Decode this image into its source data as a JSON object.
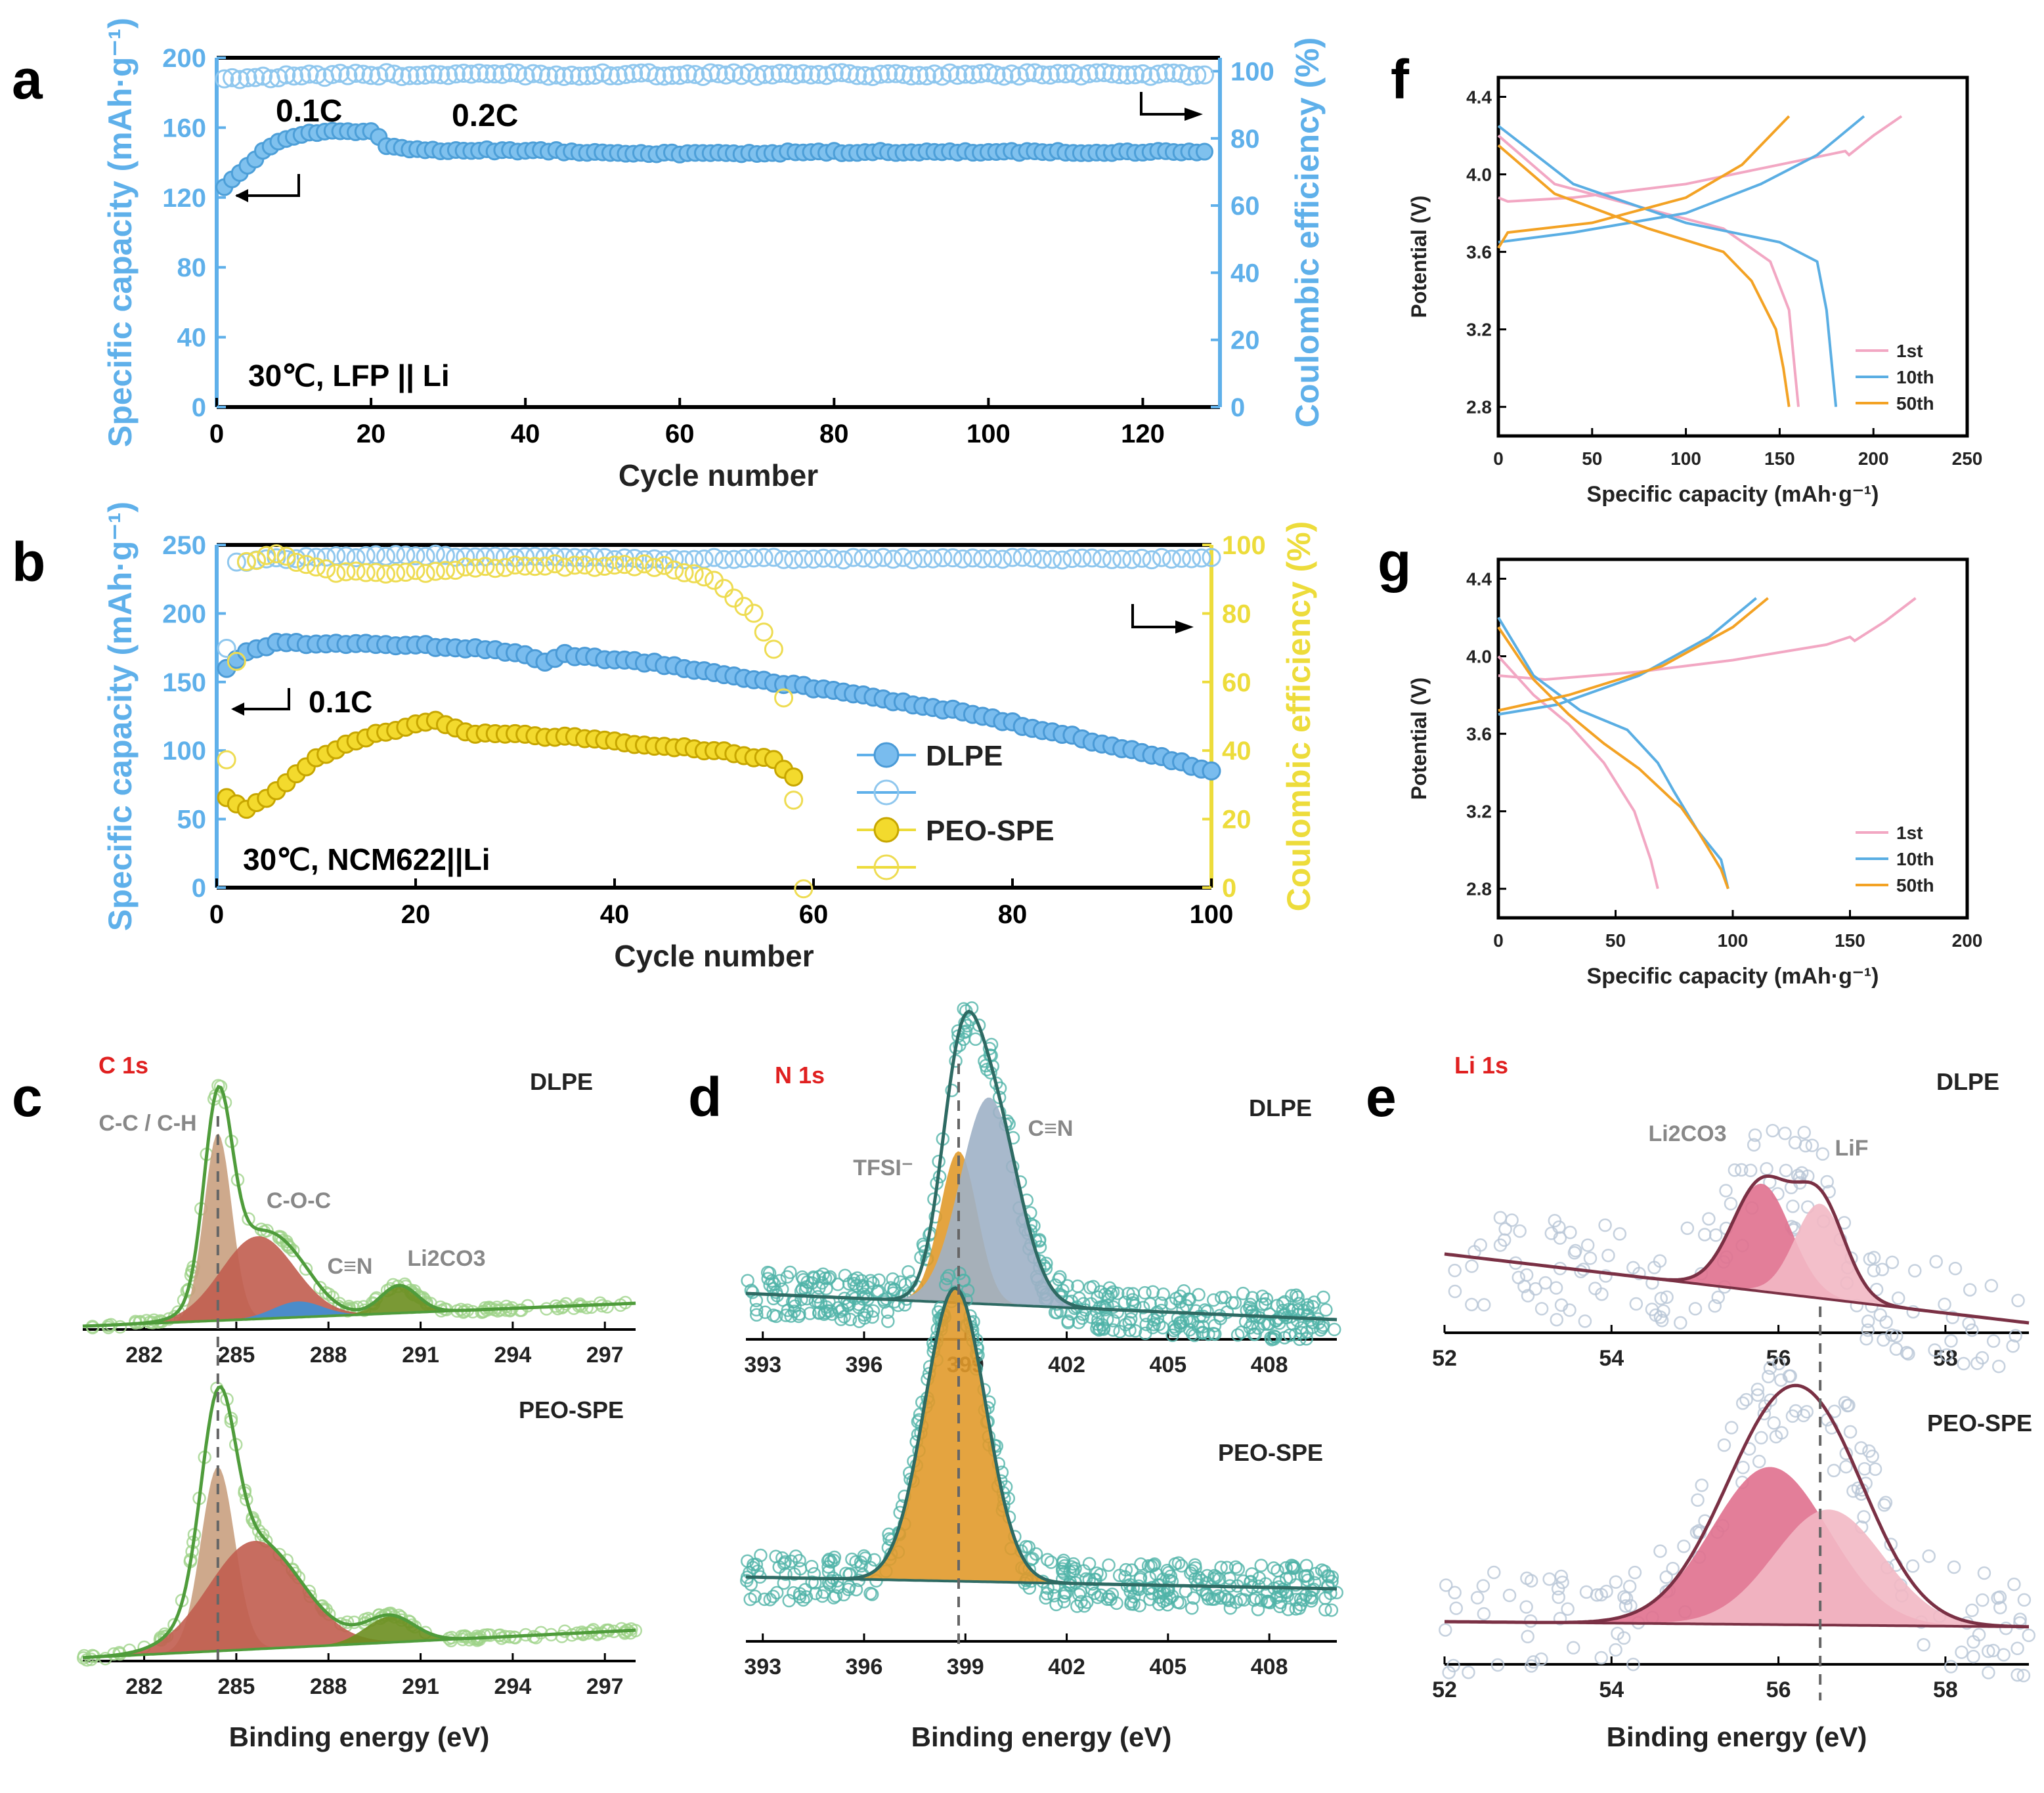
{
  "chart_data": [
    {
      "panel": "a",
      "type": "scatter",
      "annotations": [
        "0.1C",
        "0.2C"
      ],
      "condition": "30℃, LFP || Li",
      "xlabel": "Cycle number",
      "ylabel": "Specific capacity (mAh·g⁻¹)",
      "y2label": "Coulombic efficiency (%)",
      "xlim": [
        0,
        130
      ],
      "ylim": [
        0,
        200
      ],
      "y2lim": [
        0,
        104
      ],
      "xticks": [
        "0",
        "20",
        "40",
        "60",
        "80",
        "100",
        "120"
      ],
      "yticks": [
        "0",
        "40",
        "80",
        "120",
        "160",
        "200"
      ],
      "y2ticks": [
        "0",
        "20",
        "40",
        "60",
        "80",
        "100"
      ],
      "series": [
        {
          "name": "capacity",
          "points": [
            [
              1,
              126
            ],
            [
              3,
              134
            ],
            [
              6,
              146
            ],
            [
              9,
              154
            ],
            [
              12,
              157
            ],
            [
              16,
              158
            ],
            [
              20,
              158
            ],
            [
              22,
              150
            ],
            [
              26,
              147
            ],
            [
              40,
              147
            ],
            [
              60,
              145
            ],
            [
              80,
              146
            ],
            [
              100,
              146
            ],
            [
              128,
              146
            ]
          ]
        },
        {
          "name": "coulombic efficiency",
          "points": [
            [
              1,
              98
            ],
            [
              20,
              99
            ],
            [
              40,
              99
            ],
            [
              60,
              99
            ],
            [
              80,
              99
            ],
            [
              100,
              99
            ],
            [
              128,
              99
            ]
          ]
        }
      ]
    },
    {
      "panel": "b",
      "type": "scatter",
      "annotations": [
        "0.1C"
      ],
      "condition": "30℃, NCM622||Li",
      "xlabel": "Cycle number",
      "ylabel": "Specific capacity (mAh·g⁻¹)",
      "y2label": "Coulombic efficiency (%)",
      "xlim": [
        0,
        100
      ],
      "ylim": [
        0,
        250
      ],
      "y2lim": [
        0,
        100
      ],
      "xticks": [
        "0",
        "20",
        "40",
        "60",
        "80",
        "100"
      ],
      "yticks": [
        "0",
        "50",
        "100",
        "150",
        "200",
        "250"
      ],
      "y2ticks": [
        "0",
        "20",
        "40",
        "60",
        "80",
        "100"
      ],
      "legend": [
        "DLPE",
        "",
        "PEO-SPE",
        ""
      ],
      "series": [
        {
          "name": "DLPE capacity",
          "points": [
            [
              1,
              160
            ],
            [
              3,
              172
            ],
            [
              6,
              178
            ],
            [
              12,
              178
            ],
            [
              20,
              177
            ],
            [
              30,
              172
            ],
            [
              33,
              165
            ],
            [
              35,
              170
            ],
            [
              45,
              163
            ],
            [
              56,
              150
            ],
            [
              65,
              140
            ],
            [
              75,
              128
            ],
            [
              85,
              112
            ],
            [
              95,
              95
            ],
            [
              100,
              85
            ]
          ]
        },
        {
          "name": "DLPE coulombic efficiency",
          "points": [
            [
              1,
              70
            ],
            [
              2,
              95
            ],
            [
              5,
              96
            ],
            [
              20,
              97
            ],
            [
              40,
              96
            ],
            [
              60,
              96
            ],
            [
              80,
              96
            ],
            [
              100,
              96
            ]
          ]
        },
        {
          "name": "PEO-SPE capacity",
          "points": [
            [
              1,
              65
            ],
            [
              3,
              57
            ],
            [
              6,
              70
            ],
            [
              10,
              95
            ],
            [
              15,
              110
            ],
            [
              22,
              122
            ],
            [
              25,
              113
            ],
            [
              35,
              110
            ],
            [
              40,
              106
            ],
            [
              50,
              100
            ],
            [
              56,
              93
            ],
            [
              58,
              80
            ]
          ]
        },
        {
          "name": "PEO-SPE coulombic efficiency",
          "points": [
            [
              1,
              37
            ],
            [
              3,
              95
            ],
            [
              6,
              97
            ],
            [
              12,
              92
            ],
            [
              20,
              92
            ],
            [
              30,
              94
            ],
            [
              45,
              94
            ],
            [
              50,
              90
            ],
            [
              54,
              80
            ],
            [
              56,
              70
            ],
            [
              57,
              55
            ],
            [
              58,
              25
            ],
            [
              59,
              0
            ]
          ]
        }
      ]
    },
    {
      "panel": "f",
      "type": "line",
      "xlabel": "Specific capacity (mAh·g⁻¹)",
      "ylabel": "Potential (V)",
      "xlim": [
        0,
        250
      ],
      "ylim": [
        2.65,
        4.5
      ],
      "xticks": [
        "0",
        "50",
        "100",
        "150",
        "200",
        "250"
      ],
      "yticks": [
        "2.8",
        "3.2",
        "3.6",
        "4.0",
        "4.4"
      ],
      "legend": [
        "1st",
        "10th",
        "50th"
      ],
      "series": [
        {
          "name": "1st",
          "color": "#f2a7c3",
          "charge": [
            [
              0,
              3.88
            ],
            [
              5,
              3.86
            ],
            [
              40,
              3.88
            ],
            [
              100,
              3.95
            ],
            [
              150,
              4.05
            ],
            [
              185,
              4.12
            ],
            [
              187,
              4.1
            ],
            [
              200,
              4.2
            ],
            [
              215,
              4.3
            ]
          ],
          "discharge": [
            [
              0,
              4.2
            ],
            [
              30,
              3.95
            ],
            [
              80,
              3.82
            ],
            [
              120,
              3.72
            ],
            [
              145,
              3.55
            ],
            [
              155,
              3.3
            ],
            [
              158,
              3.0
            ],
            [
              160,
              2.8
            ]
          ]
        },
        {
          "name": "10th",
          "color": "#5aaee3",
          "charge": [
            [
              0,
              3.65
            ],
            [
              40,
              3.7
            ],
            [
              100,
              3.8
            ],
            [
              140,
              3.95
            ],
            [
              170,
              4.1
            ],
            [
              195,
              4.3
            ]
          ],
          "discharge": [
            [
              0,
              4.25
            ],
            [
              40,
              3.95
            ],
            [
              100,
              3.75
            ],
            [
              150,
              3.65
            ],
            [
              170,
              3.55
            ],
            [
              175,
              3.3
            ],
            [
              178,
              3.0
            ],
            [
              180,
              2.8
            ]
          ]
        },
        {
          "name": "50th",
          "color": "#f3a224",
          "charge": [
            [
              0,
              3.62
            ],
            [
              5,
              3.7
            ],
            [
              50,
              3.75
            ],
            [
              100,
              3.88
            ],
            [
              130,
              4.05
            ],
            [
              155,
              4.3
            ]
          ],
          "discharge": [
            [
              0,
              4.15
            ],
            [
              30,
              3.9
            ],
            [
              80,
              3.72
            ],
            [
              120,
              3.6
            ],
            [
              135,
              3.45
            ],
            [
              148,
              3.2
            ],
            [
              152,
              3.0
            ],
            [
              155,
              2.8
            ]
          ]
        }
      ]
    },
    {
      "panel": "g",
      "type": "line",
      "xlabel": "Specific capacity (mAh·g⁻¹)",
      "ylabel": "Potential (V)",
      "xlim": [
        0,
        200
      ],
      "ylim": [
        2.65,
        4.5
      ],
      "xticks": [
        "0",
        "50",
        "100",
        "150",
        "200"
      ],
      "yticks": [
        "2.8",
        "3.2",
        "3.6",
        "4.0",
        "4.4"
      ],
      "legend": [
        "1st",
        "10th",
        "50th"
      ],
      "series": [
        {
          "name": "1st",
          "color": "#f2a7c3",
          "charge": [
            [
              0,
              3.9
            ],
            [
              20,
              3.88
            ],
            [
              60,
              3.92
            ],
            [
              100,
              3.98
            ],
            [
              140,
              4.06
            ],
            [
              150,
              4.1
            ],
            [
              152,
              4.08
            ],
            [
              165,
              4.18
            ],
            [
              178,
              4.3
            ]
          ],
          "discharge": [
            [
              0,
              4.0
            ],
            [
              15,
              3.8
            ],
            [
              30,
              3.65
            ],
            [
              45,
              3.45
            ],
            [
              58,
              3.2
            ],
            [
              65,
              2.95
            ],
            [
              68,
              2.8
            ]
          ]
        },
        {
          "name": "10th",
          "color": "#5aaee3",
          "charge": [
            [
              0,
              3.7
            ],
            [
              25,
              3.75
            ],
            [
              60,
              3.9
            ],
            [
              90,
              4.1
            ],
            [
              110,
              4.3
            ]
          ],
          "discharge": [
            [
              0,
              4.2
            ],
            [
              15,
              3.9
            ],
            [
              35,
              3.72
            ],
            [
              55,
              3.62
            ],
            [
              68,
              3.45
            ],
            [
              75,
              3.3
            ],
            [
              85,
              3.1
            ],
            [
              95,
              2.95
            ],
            [
              98,
              2.8
            ]
          ]
        },
        {
          "name": "50th",
          "color": "#f3a224",
          "charge": [
            [
              0,
              3.72
            ],
            [
              30,
              3.8
            ],
            [
              70,
              3.95
            ],
            [
              100,
              4.15
            ],
            [
              115,
              4.3
            ]
          ],
          "discharge": [
            [
              0,
              4.15
            ],
            [
              15,
              3.88
            ],
            [
              30,
              3.7
            ],
            [
              45,
              3.55
            ],
            [
              60,
              3.42
            ],
            [
              75,
              3.25
            ],
            [
              78,
              3.22
            ],
            [
              85,
              3.1
            ],
            [
              95,
              2.9
            ],
            [
              98,
              2.8
            ]
          ]
        }
      ]
    },
    {
      "panel": "c",
      "type": "area",
      "title": "C 1s",
      "xlabel": "Binding energy (eV)",
      "xlim": [
        280,
        298
      ],
      "xticks": [
        "282",
        "285",
        "288",
        "291",
        "294",
        "297"
      ],
      "samples": [
        {
          "name": "DLPE",
          "peaks": [
            {
              "label": "C-C / C-H",
              "center": 284.4,
              "height": 0.95,
              "width": 0.45,
              "color": "#c9a07f"
            },
            {
              "label": "C-O-C",
              "center": 285.7,
              "height": 0.42,
              "width": 1.2,
              "color": "#c15d4f"
            },
            {
              "label": "C≡N",
              "center": 287.0,
              "height": 0.08,
              "width": 0.8,
              "color": "#3d8fd6"
            },
            {
              "label": "Li2CO3",
              "center": 290.3,
              "height": 0.14,
              "width": 0.6,
              "color": "#6b8e1f"
            }
          ]
        },
        {
          "name": "PEO-SPE",
          "peaks": [
            {
              "label": "",
              "center": 284.4,
              "height": 0.85,
              "width": 0.55,
              "color": "#c9a07f"
            },
            {
              "label": "",
              "center": 285.6,
              "height": 0.5,
              "width": 1.5,
              "color": "#c15d4f"
            },
            {
              "label": "",
              "center": 290.0,
              "height": 0.12,
              "width": 0.8,
              "color": "#6b8e1f"
            }
          ]
        }
      ]
    },
    {
      "panel": "d",
      "type": "area",
      "title": "N 1s",
      "xlabel": "Binding energy (eV)",
      "xlim": [
        392.5,
        410
      ],
      "xticks": [
        "393",
        "396",
        "399",
        "402",
        "405",
        "408"
      ],
      "samples": [
        {
          "name": "DLPE",
          "peaks": [
            {
              "label": "TFSI⁻",
              "center": 398.8,
              "height": 0.55,
              "width": 0.55,
              "color": "#e19a2b"
            },
            {
              "label": "C≡N",
              "center": 399.7,
              "height": 0.75,
              "width": 0.85,
              "color": "#9fb1c6"
            }
          ]
        },
        {
          "name": "PEO-SPE",
          "peaks": [
            {
              "label": "",
              "center": 398.7,
              "height": 0.95,
              "width": 0.9,
              "color": "#e19a2b"
            }
          ]
        }
      ]
    },
    {
      "panel": "e",
      "type": "area",
      "title": "Li 1s",
      "xlabel": "Binding energy (eV)",
      "xlim": [
        52,
        59
      ],
      "xticks": [
        "52",
        "54",
        "56",
        "58"
      ],
      "samples": [
        {
          "name": "DLPE",
          "peaks": [
            {
              "label": "Li2CO3",
              "center": 55.8,
              "height": 0.82,
              "width": 0.35,
              "color": "#e0708e"
            },
            {
              "label": "LiF",
              "center": 56.5,
              "height": 0.72,
              "width": 0.3,
              "color": "#f2b8c4"
            }
          ]
        },
        {
          "name": "PEO-SPE",
          "peaks": [
            {
              "label": "",
              "center": 55.9,
              "height": 0.75,
              "width": 0.7,
              "color": "#e0708e"
            },
            {
              "label": "",
              "center": 56.6,
              "height": 0.55,
              "width": 0.65,
              "color": "#f2b8c4"
            }
          ]
        }
      ]
    }
  ]
}
